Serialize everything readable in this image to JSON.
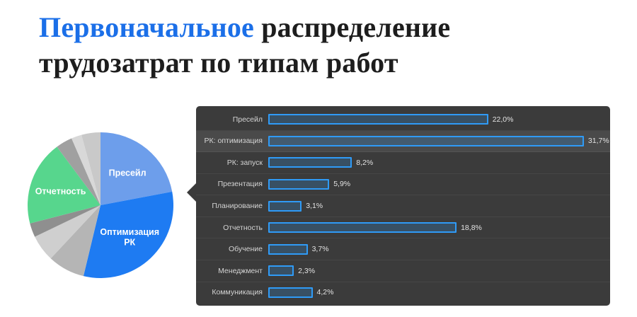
{
  "title": {
    "highlight": "Первоначальное",
    "rest": " распределение трудозатрат по типам работ"
  },
  "colors": {
    "title_highlight": "#1b6fe8",
    "title_text": "#1d1d1d",
    "panel_bg": "#3b3b3b",
    "panel_row_highlight": "#4a4a4a",
    "bar_border": "#2f9bf7",
    "pie_presale": "#6d9eeb",
    "pie_optimization": "#1e7bf2",
    "pie_reporting": "#57d68d"
  },
  "chart_data": [
    {
      "type": "pie",
      "title": "Первоначальное распределение трудозатрат по типам работ",
      "categories": [
        "Пресейл",
        "РК: оптимизация",
        "РК: запуск",
        "Презентация",
        "Планирование",
        "Отчетность",
        "Обучение",
        "Менеджмент",
        "Коммуникация"
      ],
      "values": [
        22.0,
        31.7,
        8.2,
        5.9,
        3.1,
        18.8,
        3.7,
        2.3,
        4.2
      ],
      "colors": [
        "#6d9eeb",
        "#1e7bf2",
        "#b5b5b5",
        "#cfcfcf",
        "#8f8f8f",
        "#57d68d",
        "#a0a0a0",
        "#d8d8d8",
        "#c9c9c9"
      ],
      "slice_labels": [
        "Пресейл",
        "Оптимизация РК",
        null,
        null,
        null,
        "Отчетность",
        null,
        null,
        null
      ],
      "legend_position": "none"
    },
    {
      "type": "bar",
      "orientation": "horizontal",
      "categories": [
        "Пресейл",
        "РК: оптимизация",
        "РК: запуск",
        "Презентация",
        "Планирование",
        "Отчетность",
        "Обучение",
        "Менеджмент",
        "Коммуникация"
      ],
      "values": [
        22.0,
        31.7,
        8.2,
        5.9,
        3.1,
        18.8,
        3.7,
        2.3,
        4.2
      ],
      "value_labels": [
        "22,0%",
        "31,7%",
        "8,2%",
        "5,9%",
        "3,1%",
        "18,8%",
        "3,7%",
        "2,3%",
        "4,2%"
      ],
      "xlim": [
        0,
        33
      ],
      "grid": false,
      "highlighted_category": "РК: оптимизация"
    }
  ]
}
